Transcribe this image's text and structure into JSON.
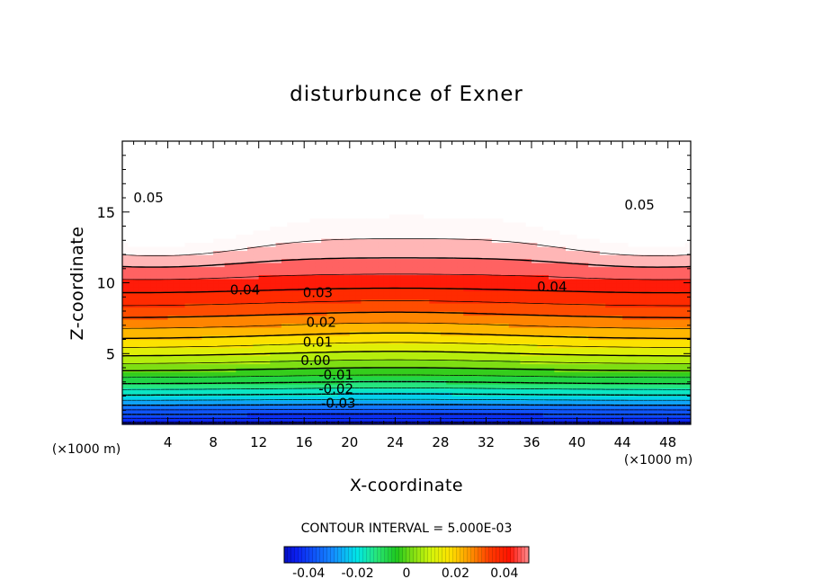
{
  "chart_data": {
    "type": "heatmap",
    "title": "disturbunce of Exner",
    "xlabel": "X-coordinate",
    "ylabel": "Z-coordinate",
    "x_unit": "(×1000 m)",
    "z_unit": "(×1000 m)",
    "xlim": [
      0,
      50
    ],
    "ylim": [
      0,
      20
    ],
    "x_ticks": [
      4,
      8,
      12,
      16,
      20,
      24,
      28,
      32,
      36,
      40,
      44,
      48
    ],
    "y_ticks": [
      5,
      10,
      15
    ],
    "contour_interval_text": "CONTOUR INTERVAL = 5.000E-03",
    "contour_interval": 0.005,
    "contour_labels": [
      {
        "text": "0.05",
        "x": 2.3,
        "z": 16.0
      },
      {
        "text": "0.05",
        "x": 45.5,
        "z": 15.5
      },
      {
        "text": "0.04",
        "x": 10.8,
        "z": 9.5
      },
      {
        "text": "0.04",
        "x": 37.8,
        "z": 9.7
      },
      {
        "text": "0.03",
        "x": 17.2,
        "z": 9.3
      },
      {
        "text": "0.02",
        "x": 17.5,
        "z": 7.2
      },
      {
        "text": "0.01",
        "x": 17.2,
        "z": 5.8
      },
      {
        "text": "0.00",
        "x": 17.0,
        "z": 4.5
      },
      {
        "text": "-0.01",
        "x": 18.8,
        "z": 3.5
      },
      {
        "text": "-0.02",
        "x": 18.8,
        "z": 2.5
      },
      {
        "text": "-0.03",
        "x": 19.0,
        "z": 1.5
      }
    ],
    "colorbar": {
      "min": -0.05,
      "max": 0.05,
      "tick_labels": [
        "-0.04",
        "-0.02",
        "0",
        "0.02",
        "0.04"
      ],
      "tick_values": [
        -0.04,
        -0.02,
        0,
        0.02,
        0.04
      ]
    },
    "field": {
      "description_values": "Exner perturbation: about -0.05 near z=0, rising to 0.045 at z≈13 km, 0.055 maxima centred at x≈3 and x≈47 km, z≈15 km"
    }
  }
}
